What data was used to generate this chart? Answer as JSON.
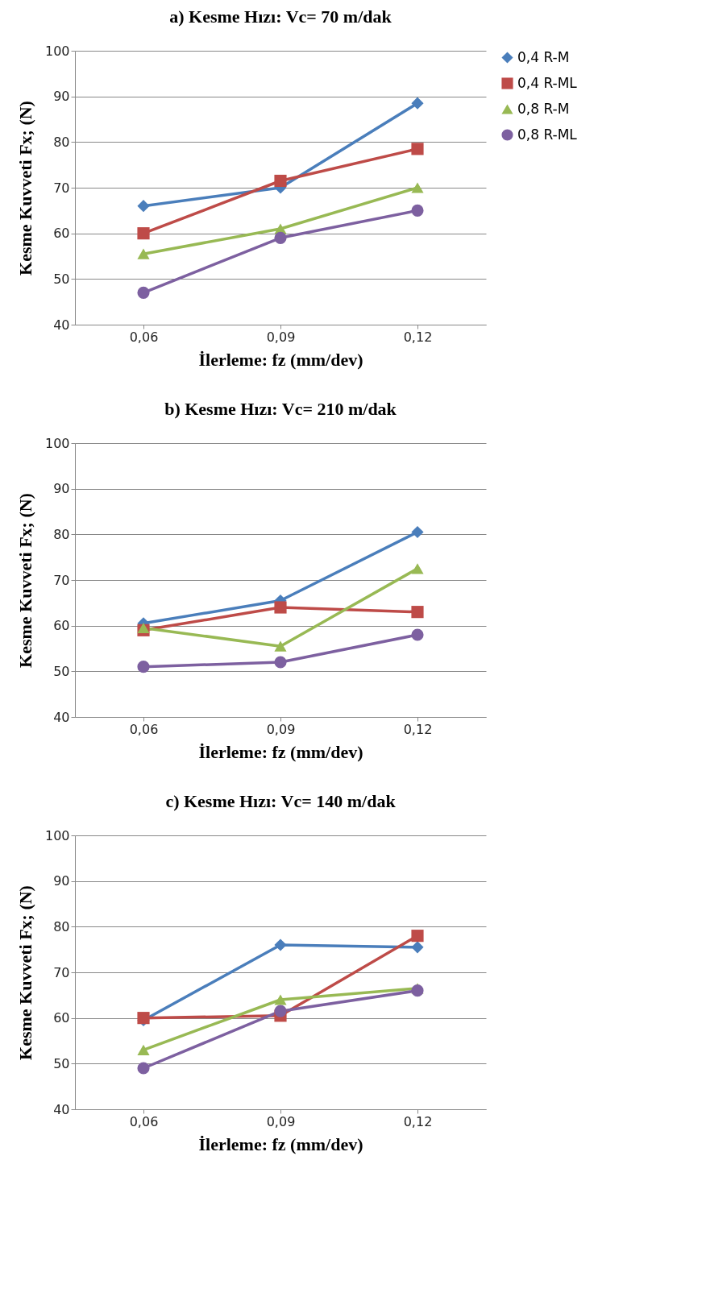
{
  "chart_data": [
    {
      "type": "line",
      "title": "a) Kesme Hızı: Vc= 70 m/dak",
      "xlabel": "İlerleme: fz (mm/dev)",
      "ylabel": "Kesme Kuvveti  Fx; (N)",
      "categories": [
        "0,06",
        "0,09",
        "0,12"
      ],
      "ylim": [
        40,
        100
      ],
      "yticks": [
        40,
        50,
        60,
        70,
        80,
        90,
        100
      ],
      "grid": "y",
      "legend": "right",
      "line_style": "solid",
      "series": [
        {
          "name": "0,4 R-M",
          "color": "#4a7ebb",
          "marker": "diamond",
          "values": [
            66,
            70,
            88.5
          ]
        },
        {
          "name": "0,4 R-ML",
          "color": "#be4b48",
          "marker": "square",
          "values": [
            60,
            71.5,
            78.5
          ]
        },
        {
          "name": "0,8 R-M",
          "color": "#98b954",
          "marker": "triangle",
          "values": [
            55.5,
            61,
            70
          ]
        },
        {
          "name": "0,8 R-ML",
          "color": "#7d60a0",
          "marker": "circle",
          "values": [
            47,
            59,
            65
          ]
        }
      ]
    },
    {
      "type": "line",
      "title": "b) Kesme Hızı: Vc= 210 m/dak",
      "xlabel": "İlerleme: fz (mm/dev)",
      "ylabel": "Kesme Kuvveti  Fx; (N)",
      "categories": [
        "0,06",
        "0,09",
        "0,12"
      ],
      "ylim": [
        40,
        100
      ],
      "yticks": [
        40,
        50,
        60,
        70,
        80,
        90,
        100
      ],
      "grid": "y",
      "legend": "right",
      "line_style": "solid",
      "series": [
        {
          "name": "0,4 R-M",
          "color": "#4a7ebb",
          "marker": "diamond",
          "values": [
            60.5,
            65.5,
            80.5
          ]
        },
        {
          "name": "0,4 R-ML",
          "color": "#be4b48",
          "marker": "square",
          "values": [
            59,
            64,
            63
          ]
        },
        {
          "name": "0,8 R-M",
          "color": "#98b954",
          "marker": "triangle",
          "values": [
            59.5,
            55.5,
            72.5
          ]
        },
        {
          "name": "0,8 R-ML",
          "color": "#7d60a0",
          "marker": "circle",
          "values": [
            51,
            52,
            58
          ]
        }
      ]
    },
    {
      "type": "line",
      "title": "c) Kesme Hızı: Vc= 140 m/dak",
      "xlabel": "İlerleme: fz (mm/dev)",
      "ylabel": "Kesme Kuvveti  Fx; (N)",
      "categories": [
        "0,06",
        "0,09",
        "0,12"
      ],
      "ylim": [
        40,
        100
      ],
      "yticks": [
        40,
        50,
        60,
        70,
        80,
        90,
        100
      ],
      "grid": "y",
      "legend": "right",
      "line_style": "solid",
      "series": [
        {
          "name": "0,4 R-M",
          "color": "#4a7ebb",
          "marker": "diamond",
          "values": [
            59.5,
            76,
            75.5
          ]
        },
        {
          "name": "0,4 R-ML",
          "color": "#be4b48",
          "marker": "square",
          "values": [
            60,
            60.5,
            78
          ]
        },
        {
          "name": "0,8 R-M",
          "color": "#98b954",
          "marker": "triangle",
          "values": [
            53,
            64,
            66.5
          ]
        },
        {
          "name": "0,8 R-ML",
          "color": "#7d60a0",
          "marker": "circle",
          "values": [
            49,
            61.5,
            66
          ]
        }
      ]
    }
  ]
}
